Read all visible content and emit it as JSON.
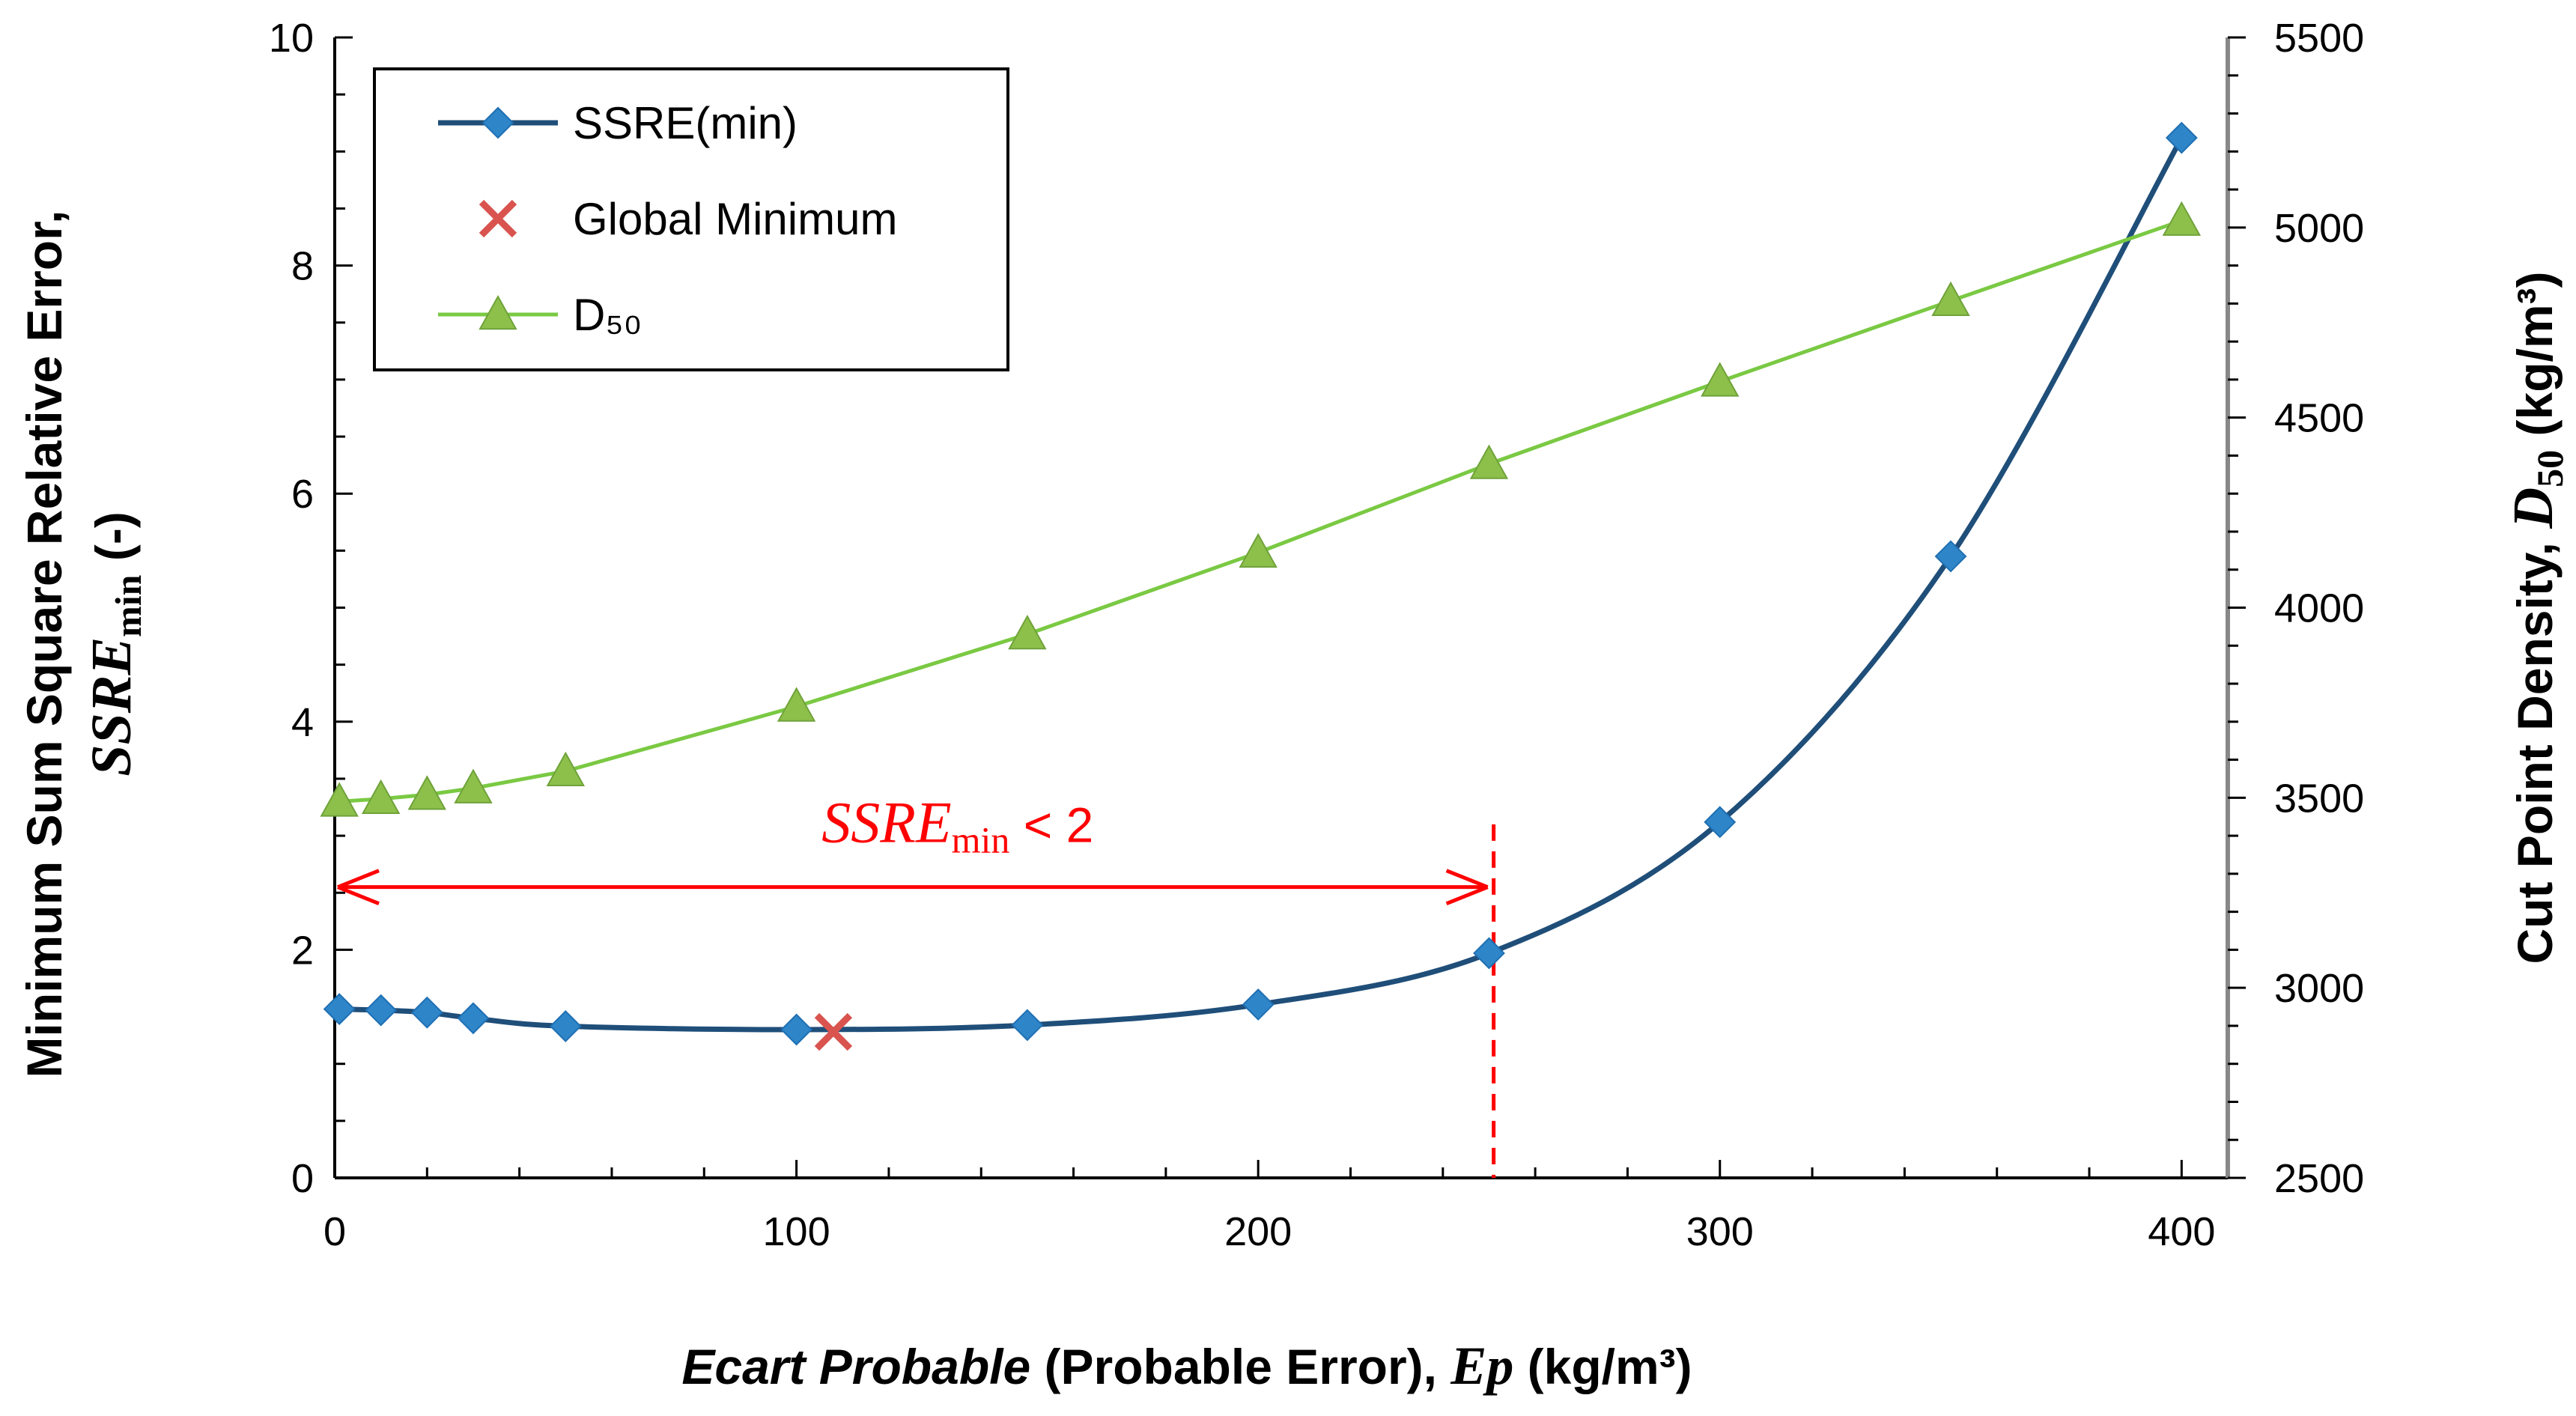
{
  "chart_data": {
    "type": "line",
    "x_axis": {
      "label_italic": "Ecart Probable",
      "label_plain": " (Probable Error), ",
      "label_var": "Ep",
      "label_unit": " (kg/m³)",
      "ticks": [
        "0",
        "100",
        "200",
        "300",
        "400"
      ],
      "tick_values": [
        0,
        100,
        200,
        300,
        400
      ],
      "range": [
        0,
        410
      ]
    },
    "y_left": {
      "label_line1": "Minimum Sum Square Relative Error,",
      "label_var": "SSRE",
      "label_sub": "min",
      "label_unit": " (-)",
      "ticks": [
        "0",
        "2",
        "4",
        "6",
        "8",
        "10"
      ],
      "tick_values": [
        0,
        2,
        4,
        6,
        8,
        10
      ],
      "range": [
        0,
        10
      ]
    },
    "y_right": {
      "label_text": "Cut Point Density, ",
      "label_var": "D",
      "label_sub": "50",
      "label_unit": " (kg/m³)",
      "ticks": [
        "2500",
        "3000",
        "3500",
        "4000",
        "4500",
        "5000",
        "5500"
      ],
      "tick_values": [
        2500,
        3000,
        3500,
        4000,
        4500,
        5000,
        5500
      ],
      "range": [
        2500,
        5500
      ]
    },
    "series": [
      {
        "name": "SSRE(min)",
        "axis": "left",
        "color": "#1F4E79",
        "marker_color": "#2E86C9",
        "marker": "diamond",
        "x": [
          1,
          10,
          20,
          30,
          50,
          100,
          150,
          200,
          250,
          300,
          350,
          400
        ],
        "y": [
          1.48,
          1.47,
          1.45,
          1.4,
          1.33,
          1.3,
          1.34,
          1.52,
          1.97,
          3.12,
          5.45,
          9.12
        ]
      },
      {
        "name": "Global Minimum",
        "axis": "left",
        "color": "#D9534F",
        "marker": "x",
        "x": [
          108
        ],
        "y": [
          1.28
        ]
      },
      {
        "name": "D₅₀",
        "axis": "right",
        "color": "#7AC943",
        "marker_color": "#8DC04A",
        "marker": "triangle",
        "x": [
          1,
          10,
          20,
          30,
          50,
          100,
          150,
          200,
          250,
          300,
          350,
          400
        ],
        "y": [
          3490,
          3497,
          3508,
          3525,
          3570,
          3740,
          3930,
          4145,
          4378,
          4595,
          4807,
          5018
        ]
      }
    ],
    "annotation": {
      "label_var": "SSRE",
      "label_sub": "min",
      "label_rest": " < 2",
      "color": "#FF0000",
      "threshold_x": 251,
      "threshold_line_top_y": 3.1,
      "arrow_y": 2.55
    },
    "legend": {
      "position": "top-left",
      "entries": [
        "SSRE(min)",
        "Global Minimum",
        "D₅₀"
      ]
    }
  }
}
